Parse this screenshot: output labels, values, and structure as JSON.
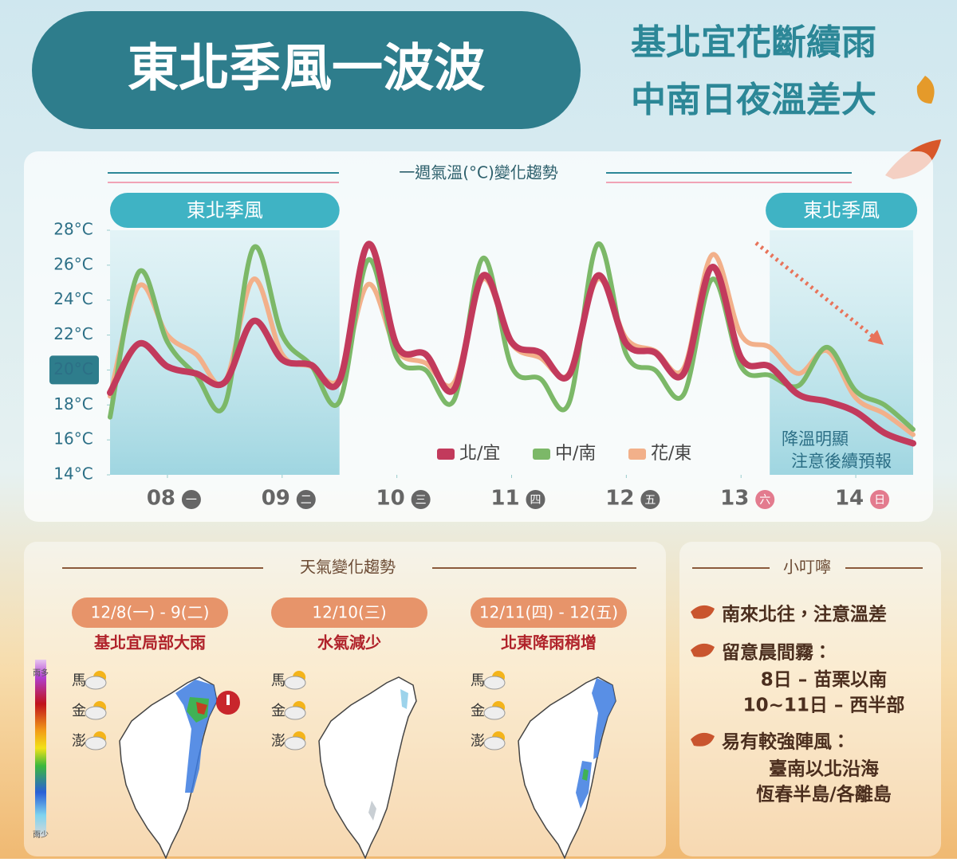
{
  "header": {
    "title": "東北季風一波波",
    "subtitle": [
      "基北宜花斷續雨",
      "中南日夜溫差大"
    ]
  },
  "chart_data": {
    "type": "line",
    "title": "一週氣溫(°C)變化趨勢",
    "x": [
      0,
      6,
      12,
      18,
      24,
      30,
      36,
      42,
      48,
      54,
      60,
      66,
      72,
      78,
      84,
      90,
      96,
      102,
      108,
      114,
      120,
      126,
      132,
      138,
      144,
      150,
      156,
      162,
      168
    ],
    "xlim": [
      0,
      168
    ],
    "xticks": [
      {
        "value": 12,
        "label": "08"
      },
      {
        "value": 36,
        "label": "09"
      },
      {
        "value": 60,
        "label": "10"
      },
      {
        "value": 84,
        "label": "11"
      },
      {
        "value": 108,
        "label": "12"
      },
      {
        "value": 132,
        "label": "13"
      },
      {
        "value": 156,
        "label": "14"
      }
    ],
    "weekdays": [
      "一",
      "二",
      "三",
      "四",
      "五",
      "六",
      "日"
    ],
    "ylim": [
      14,
      28
    ],
    "yticks": [
      {
        "value": 14,
        "label": "14°C"
      },
      {
        "value": 16,
        "label": "16°C"
      },
      {
        "value": 18,
        "label": "18°C"
      },
      {
        "value": 20,
        "label": "20°C"
      },
      {
        "value": 22,
        "label": "22°C"
      },
      {
        "value": 24,
        "label": "24°C"
      },
      {
        "value": 26,
        "label": "26°C"
      },
      {
        "value": 28,
        "label": "28°C"
      }
    ],
    "series": [
      {
        "name": "北/宜",
        "color": "#c23a5c",
        "values": [
          18.7,
          21.5,
          20.2,
          19.8,
          19.3,
          22.8,
          20.6,
          20.3,
          19.4,
          27.2,
          21.4,
          20.9,
          18.9,
          25.4,
          21.6,
          21.0,
          19.7,
          25.4,
          21.5,
          21.0,
          19.8,
          25.9,
          20.7,
          20.2,
          18.6,
          18.2,
          17.6,
          16.4,
          15.8
        ]
      },
      {
        "name": "中/南",
        "color": "#7cb868",
        "values": [
          17.3,
          25.6,
          21.6,
          19.7,
          18.0,
          27.0,
          22.0,
          20.3,
          18.2,
          26.3,
          20.7,
          20.0,
          18.3,
          26.4,
          20.2,
          19.5,
          18.1,
          27.2,
          20.9,
          20.0,
          18.6,
          25.2,
          20.2,
          19.7,
          19.1,
          21.3,
          18.8,
          18.0,
          16.6
        ]
      },
      {
        "name": "花/東",
        "color": "#f2b08a",
        "values": [
          18.5,
          24.8,
          22.0,
          20.9,
          19.3,
          25.2,
          20.9,
          20.2,
          19.5,
          24.9,
          21.1,
          20.4,
          19.3,
          25.2,
          21.5,
          20.7,
          19.8,
          25.2,
          21.8,
          21.1,
          20.1,
          26.6,
          22.0,
          21.3,
          19.8,
          21.1,
          18.4,
          17.5,
          16.3
        ]
      }
    ],
    "bands": [
      {
        "label": "東北季風",
        "from": 0,
        "to": 48
      },
      {
        "label": "東北季風",
        "from": 138,
        "to": 168
      }
    ],
    "annotation": [
      "降溫明顯",
      "注意後續預報"
    ],
    "legend": "lower center"
  },
  "weather": {
    "title": "天氣變化趨勢",
    "legend": [
      "雨多",
      "雨少"
    ],
    "periods": [
      {
        "date": "12/8(一) - 9(二)",
        "summary": "基北宜局部大雨",
        "islands": [
          "馬",
          "金",
          "澎"
        ]
      },
      {
        "date": "12/10(三)",
        "summary": "水氣減少",
        "islands": [
          "馬",
          "金",
          "澎"
        ]
      },
      {
        "date": "12/11(四) - 12(五)",
        "summary": "北東降雨稍增",
        "islands": [
          "馬",
          "金",
          "澎"
        ]
      }
    ]
  },
  "tips": {
    "title": "小叮嚀",
    "items": [
      {
        "heading": "南來北往，注意溫差"
      },
      {
        "heading": "留意晨間霧：",
        "lines": [
          "8日 – 苗栗以南",
          "10~11日 – 西半部"
        ]
      },
      {
        "heading": "易有較強陣風：",
        "lines": [
          "臺南以北沿海",
          "恆春半島/各離島"
        ]
      }
    ]
  }
}
